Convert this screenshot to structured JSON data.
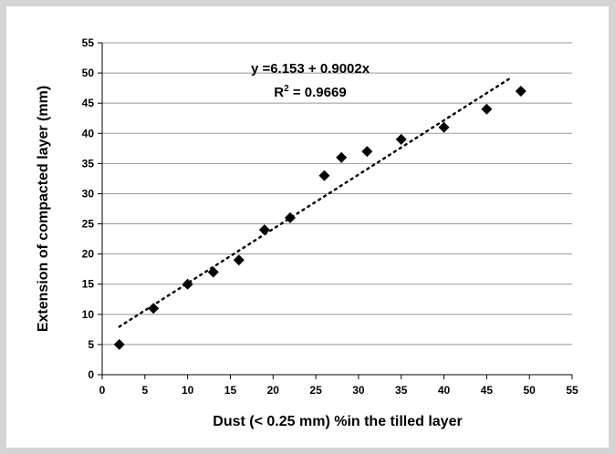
{
  "chart_data": {
    "type": "scatter",
    "xlabel": "Dust (< 0.25 mm) %in the tilled layer",
    "ylabel": "Extension of compacted layer (mm)",
    "xlim": [
      0,
      55
    ],
    "ylim": [
      0,
      55
    ],
    "x_ticks": [
      0,
      5,
      10,
      15,
      20,
      25,
      30,
      35,
      40,
      45,
      50,
      55
    ],
    "y_ticks": [
      0,
      5,
      10,
      15,
      20,
      25,
      30,
      35,
      40,
      45,
      50,
      55
    ],
    "grid": "horizontal",
    "marker": "diamond",
    "marker_color": "#000000",
    "series": [
      {
        "x": [
          2,
          6,
          10,
          13,
          16,
          19,
          22,
          26,
          28,
          31,
          35,
          40,
          45,
          49
        ],
        "y": [
          5,
          11,
          15,
          17,
          19,
          24,
          26,
          33,
          36,
          37,
          39,
          41,
          44,
          47
        ]
      }
    ],
    "trendline": {
      "style": "dotted",
      "x_range": [
        2,
        48
      ],
      "intercept": 6.153,
      "slope": 0.9002
    },
    "annotations": {
      "equation": "y =6.153 +  0.9002x",
      "r2_label": "R",
      "r2_sup": "2",
      "r2_value": " = 0.9669"
    }
  }
}
